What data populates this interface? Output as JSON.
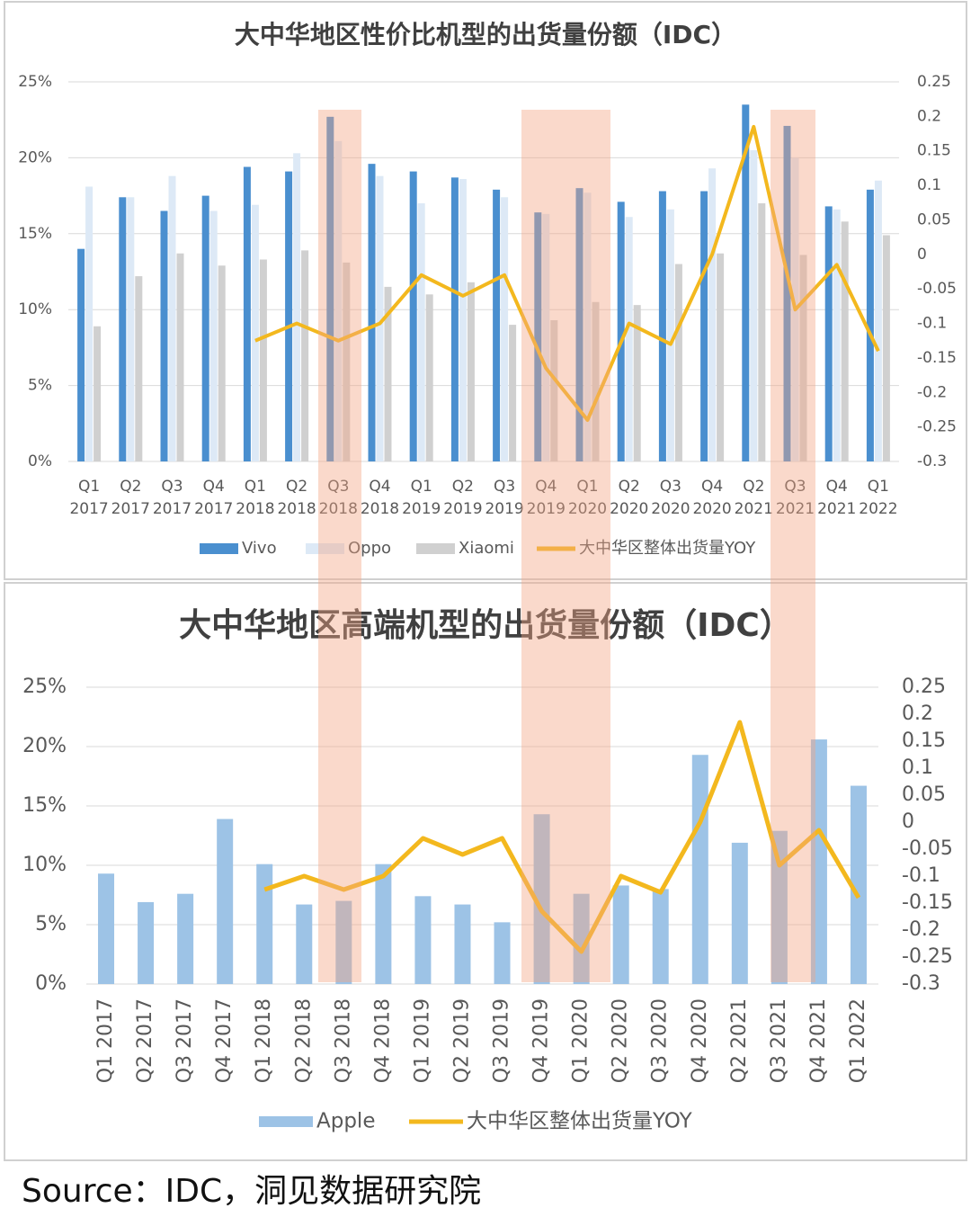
{
  "chart_data": [
    {
      "type": "bar",
      "title": "大中华地区性价比机型的出货量份额（IDC）",
      "categories": [
        "Q1 2017",
        "Q2 2017",
        "Q3 2017",
        "Q4 2017",
        "Q1 2018",
        "Q2 2018",
        "Q3 2018",
        "Q4 2018",
        "Q1 2019",
        "Q2 2019",
        "Q3 2019",
        "Q4 2019",
        "Q1 2020",
        "Q2 2020",
        "Q3 2020",
        "Q4 2020",
        "Q2 2021",
        "Q3 2021",
        "Q4 2021",
        "Q1 2022"
      ],
      "series": [
        {
          "name": "Vivo",
          "color": "#4a8fcf",
          "values": [
            14.0,
            17.4,
            16.5,
            17.5,
            19.4,
            19.1,
            22.7,
            19.6,
            19.1,
            18.7,
            17.9,
            16.4,
            18.0,
            17.1,
            17.8,
            17.8,
            23.5,
            22.1,
            16.8,
            17.9
          ]
        },
        {
          "name": "Oppo",
          "color": "#dde9f6",
          "values": [
            18.1,
            17.4,
            18.8,
            16.5,
            16.9,
            20.3,
            21.1,
            18.8,
            17.0,
            18.6,
            17.4,
            16.3,
            17.7,
            16.1,
            16.6,
            19.3,
            20.5,
            20.0,
            16.6,
            18.5
          ]
        },
        {
          "name": "Xiaomi",
          "color": "#d0d0d0",
          "values": [
            8.9,
            12.2,
            13.7,
            12.9,
            13.3,
            13.9,
            13.1,
            11.5,
            11.0,
            11.8,
            9.0,
            9.3,
            10.5,
            10.3,
            13.0,
            13.7,
            17.0,
            13.6,
            15.8,
            14.9
          ]
        },
        {
          "name": "大中华区整体出货量YOY",
          "color": "#f3b81e",
          "axis": "y2",
          "values": [
            null,
            null,
            null,
            null,
            -0.125,
            -0.1,
            -0.125,
            -0.1,
            -0.03,
            -0.06,
            -0.03,
            -0.165,
            -0.24,
            -0.1,
            -0.13,
            0.0,
            0.185,
            -0.08,
            -0.015,
            -0.14
          ]
        }
      ],
      "ylim": [
        0,
        25
      ],
      "yticks": [
        {
          "value": 0,
          "label": "0%"
        },
        {
          "value": 5,
          "label": "5%"
        },
        {
          "value": 10,
          "label": "10%"
        },
        {
          "value": 15,
          "label": "15%"
        },
        {
          "value": 20,
          "label": "20%"
        },
        {
          "value": 25,
          "label": "25%"
        }
      ],
      "y2lim": [
        -0.3,
        0.25
      ],
      "y2ticks": [
        -0.3,
        -0.25,
        -0.2,
        -0.15,
        -0.1,
        -0.05,
        0,
        0.05,
        0.1,
        0.15,
        0.2,
        0.25
      ],
      "grid": true,
      "legend": "bottom"
    },
    {
      "type": "bar",
      "title": "大中华地区高端机型的出货量份额（IDC）",
      "categories": [
        "Q1 2017",
        "Q2 2017",
        "Q3 2017",
        "Q4 2017",
        "Q1 2018",
        "Q2 2018",
        "Q3 2018",
        "Q4 2018",
        "Q1 2019",
        "Q2 2019",
        "Q3 2019",
        "Q4 2019",
        "Q1 2020",
        "Q2 2020",
        "Q3 2020",
        "Q4 2020",
        "Q2 2021",
        "Q3 2021",
        "Q4 2021",
        "Q1 2022"
      ],
      "series": [
        {
          "name": "Apple",
          "color": "#9dc3e6",
          "values": [
            9.3,
            6.9,
            7.6,
            13.9,
            10.1,
            6.7,
            7.0,
            10.1,
            7.4,
            6.7,
            5.2,
            14.3,
            7.6,
            8.3,
            8.0,
            19.3,
            11.9,
            12.9,
            20.6,
            16.7
          ]
        },
        {
          "name": "大中华区整体出货量YOY",
          "color": "#f3b81e",
          "axis": "y2",
          "values": [
            null,
            null,
            null,
            null,
            -0.125,
            -0.1,
            -0.125,
            -0.1,
            -0.03,
            -0.06,
            -0.03,
            -0.165,
            -0.24,
            -0.1,
            -0.13,
            0.0,
            0.185,
            -0.08,
            -0.015,
            -0.14
          ]
        }
      ],
      "ylim": [
        0,
        25
      ],
      "yticks": [
        {
          "value": 0,
          "label": "0%"
        },
        {
          "value": 5,
          "label": "5%"
        },
        {
          "value": 10,
          "label": "10%"
        },
        {
          "value": 15,
          "label": "15%"
        },
        {
          "value": 20,
          "label": "20%"
        },
        {
          "value": 25,
          "label": "25%"
        }
      ],
      "y2lim": [
        -0.3,
        0.25
      ],
      "y2ticks": [
        -0.3,
        -0.25,
        -0.2,
        -0.15,
        -0.1,
        -0.05,
        0,
        0.05,
        0.1,
        0.15,
        0.2,
        0.25
      ],
      "grid": true,
      "legend": "bottom"
    }
  ],
  "source": "Source：IDC，洞见数据研究院"
}
